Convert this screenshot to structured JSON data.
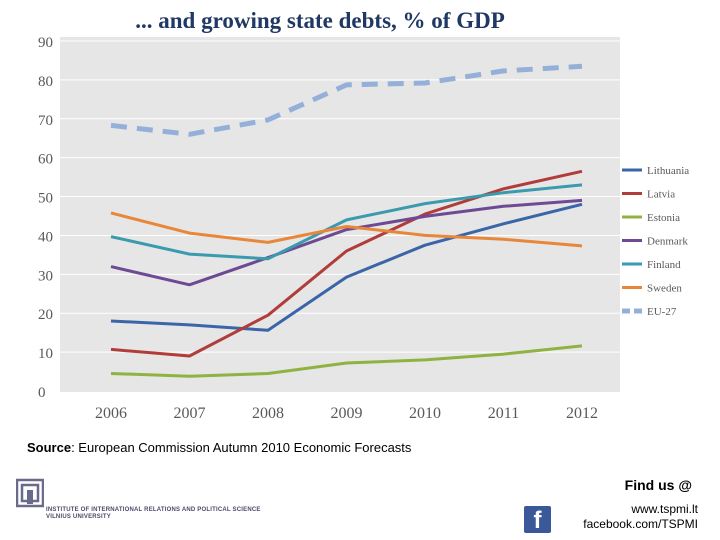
{
  "chart_data": {
    "type": "line",
    "title": "... and growing state debts, % of GDP",
    "categories": [
      "2006",
      "2007",
      "2008",
      "2009",
      "2010",
      "2011",
      "2012"
    ],
    "ylim": [
      0,
      90
    ],
    "yticks": [
      "0",
      "10",
      "20",
      "30",
      "40",
      "50",
      "60",
      "70",
      "80",
      "90"
    ],
    "grid": true,
    "legend_position": "right",
    "series": [
      {
        "name": "Lithuania",
        "color": "#3a65a8",
        "dash": false,
        "values": [
          18,
          17,
          15.6,
          29.3,
          37.5,
          43,
          48
        ]
      },
      {
        "name": "Latvia",
        "color": "#b13d3a",
        "dash": false,
        "values": [
          10.7,
          9,
          19.5,
          36,
          45.5,
          52,
          56.5
        ]
      },
      {
        "name": "Estonia",
        "color": "#8fb243",
        "dash": false,
        "values": [
          4.5,
          3.8,
          4.5,
          7.2,
          8,
          9.5,
          11.6
        ]
      },
      {
        "name": "Denmark",
        "color": "#6d4a93",
        "dash": false,
        "values": [
          32,
          27.3,
          34.3,
          41.5,
          44.9,
          47.5,
          49
        ]
      },
      {
        "name": "Finland",
        "color": "#3a9aae",
        "dash": false,
        "values": [
          39.7,
          35.2,
          34,
          44,
          48.2,
          51,
          53
        ]
      },
      {
        "name": "Sweden",
        "color": "#e8873a",
        "dash": false,
        "values": [
          45.8,
          40.6,
          38.2,
          42.3,
          40,
          39,
          37.3
        ]
      },
      {
        "name": "EU-27",
        "color": "#94b0d9",
        "dash": true,
        "values": [
          68.3,
          66,
          69.7,
          78.7,
          79.2,
          82.3,
          83.5
        ]
      }
    ]
  },
  "footer": {
    "source_label": "Source",
    "source_text": ": European Commission  Autumn 2010 Economic Forecasts",
    "find_us": "Find us @",
    "website": "www.tspmi.lt",
    "facebook": "facebook.com/TSPMI",
    "institute_line1": "INSTITUTE OF INTERNATIONAL RELATIONS AND POLITICAL SCIENCE",
    "institute_line2": "VILNIUS UNIVERSITY"
  },
  "icons": {
    "facebook": "facebook-icon",
    "logo": "tspmi-logo-icon"
  }
}
